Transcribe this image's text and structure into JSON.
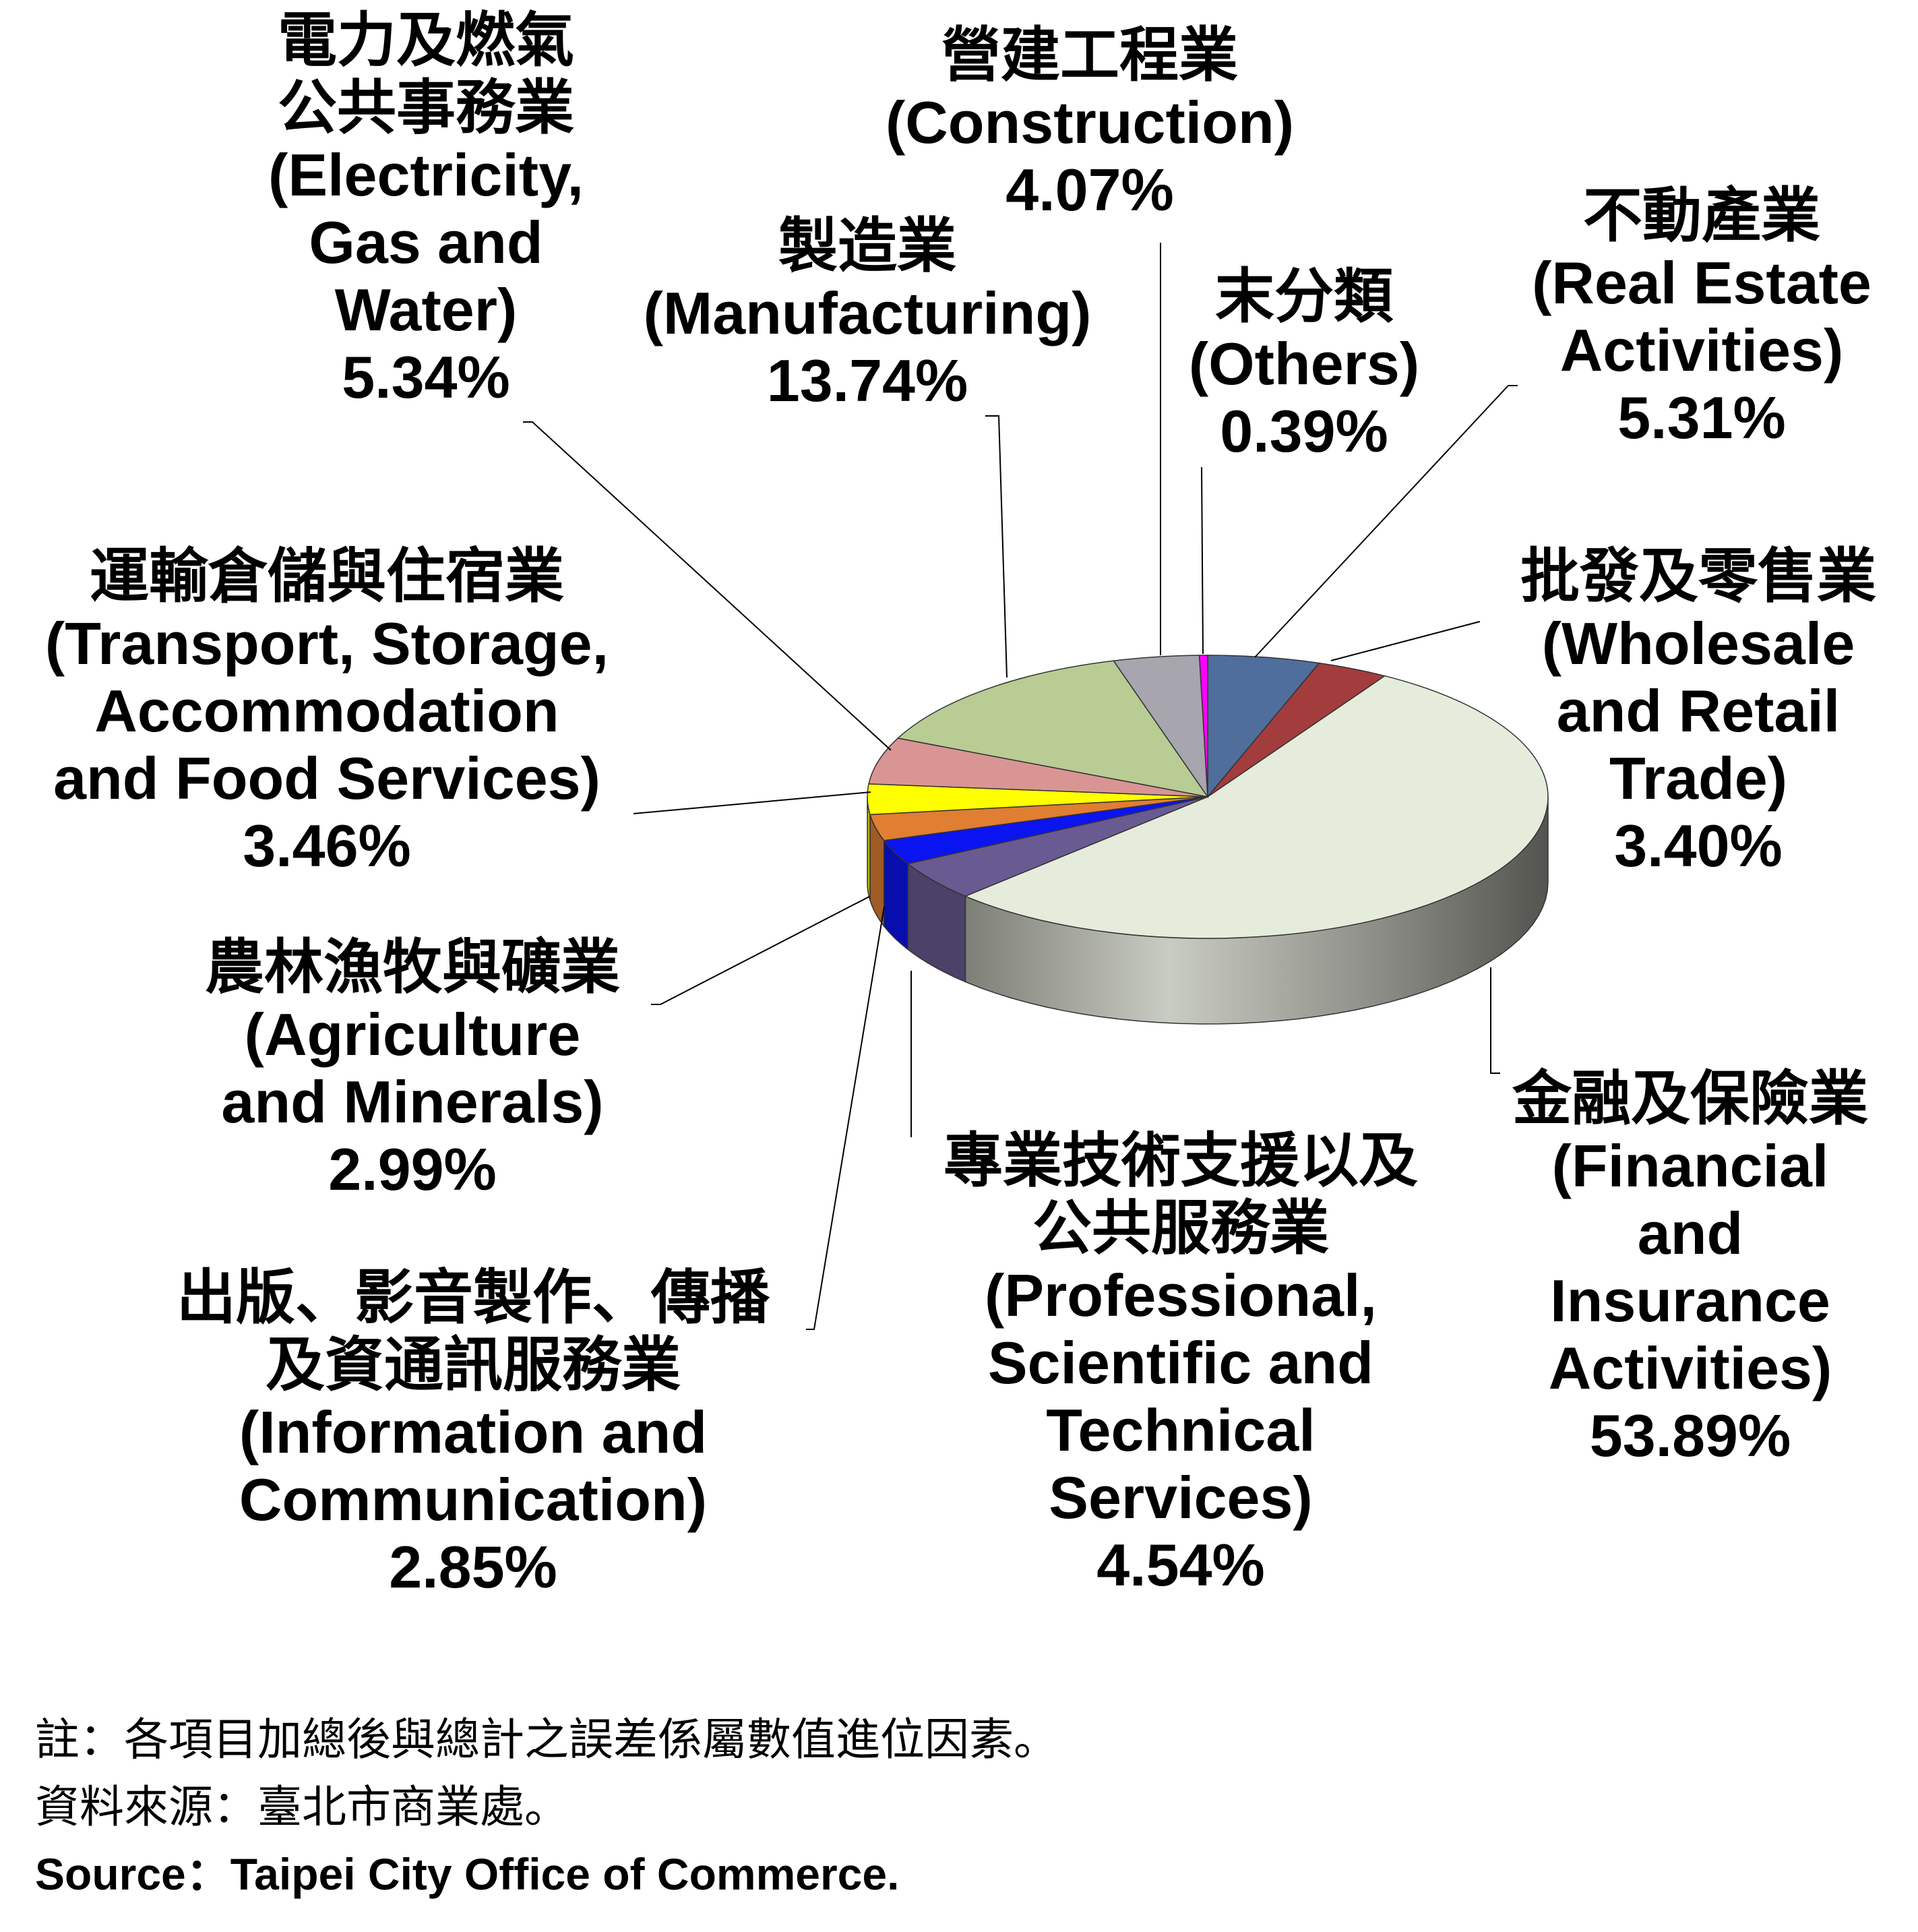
{
  "chart_data": {
    "type": "pie",
    "slices": [
      {
        "zh": "不動產業",
        "en": [
          "(Real Estate",
          "Activities)"
        ],
        "value": 5.31,
        "value_label": "5.31%",
        "color": "#4F6E9C"
      },
      {
        "zh": "批發及零售業",
        "en": [
          "(Wholesale",
          "and Retail",
          "Trade)"
        ],
        "value": 3.4,
        "value_label": "3.40%",
        "color": "#A33C3C"
      },
      {
        "zh": "金融及保險業",
        "en": [
          "(Financial",
          "and",
          "Insurance",
          "Activities)"
        ],
        "value": 53.89,
        "value_label": "53.89%",
        "color": "#E6ECDC"
      },
      {
        "zh": "專業技術支援以及公共服務業",
        "en": [
          "(Professional,",
          "Scientific and",
          "Technical",
          "Services)"
        ],
        "value": 4.54,
        "value_label": "4.54%",
        "color": "#6A5A92"
      },
      {
        "zh": "出版、影音製作、傳播及資通訊服務業",
        "en": [
          "(Information and",
          "Communication)"
        ],
        "value": 2.85,
        "value_label": "2.85%",
        "color": "#0A14F0"
      },
      {
        "zh": "農林漁牧與礦業",
        "en": [
          "(Agriculture",
          "and Minerals)"
        ],
        "value": 2.99,
        "value_label": "2.99%",
        "color": "#E07E32"
      },
      {
        "zh": "運輸倉儲與住宿業",
        "en": [
          "(Transport, Storage,",
          "Accommodation",
          "and Food Services)"
        ],
        "value": 3.46,
        "value_label": "3.46%",
        "color": "#FFFF00"
      },
      {
        "zh": "電力及燃氣公共事務業",
        "en": [
          "(Electricity,",
          "Gas and",
          "Water)"
        ],
        "value": 5.34,
        "value_label": "5.34%",
        "color": "#D99594"
      },
      {
        "zh": "製造業",
        "en": [
          "(Manufacturing)"
        ],
        "value": 13.74,
        "value_label": "13.74%",
        "color": "#B8CC94"
      },
      {
        "zh": "營建工程業",
        "en": [
          "(Construction)"
        ],
        "value": 4.07,
        "value_label": "4.07%",
        "color": "#A7A5AD"
      },
      {
        "zh": "末分類",
        "en": [
          "(Others)"
        ],
        "value": 0.39,
        "value_label": "0.39%",
        "color": "#FF00FF"
      }
    ]
  },
  "labels": {
    "real_estate": {
      "zh": [
        "不動產業"
      ],
      "en": [
        "(Real Estate",
        "Activities)"
      ],
      "pct": "5.31%"
    },
    "wholesale": {
      "zh": [
        "批發及零售業"
      ],
      "en": [
        "(Wholesale",
        "and Retail",
        "Trade)"
      ],
      "pct": "3.40%"
    },
    "financial": {
      "zh": [
        "金融及保險業"
      ],
      "en": [
        "(Financial",
        "and",
        "Insurance",
        "Activities)"
      ],
      "pct": "53.89%"
    },
    "professional": {
      "zh": [
        "專業技術支援以及",
        "公共服務業"
      ],
      "en": [
        "(Professional,",
        "Scientific and",
        "Technical",
        "Services)"
      ],
      "pct": "4.54%"
    },
    "information": {
      "zh": [
        "出版、影音製作、傳播",
        "及資通訊服務業"
      ],
      "en": [
        "(Information and",
        "Communication)"
      ],
      "pct": "2.85%"
    },
    "agriculture": {
      "zh": [
        "農林漁牧與礦業"
      ],
      "en": [
        "(Agriculture",
        "and Minerals)"
      ],
      "pct": "2.99%"
    },
    "transport": {
      "zh": [
        "運輸倉儲與住宿業"
      ],
      "en": [
        "(Transport, Storage,",
        "Accommodation",
        "and Food Services)"
      ],
      "pct": "3.46%"
    },
    "electricity": {
      "zh": [
        "電力及燃氣",
        "公共事務業"
      ],
      "en": [
        "(Electricity,",
        "Gas and",
        "Water)"
      ],
      "pct": "5.34%"
    },
    "manufacturing": {
      "zh": [
        "製造業"
      ],
      "en": [
        "(Manufacturing)"
      ],
      "pct": "13.74%"
    },
    "construction": {
      "zh": [
        "營建工程業"
      ],
      "en": [
        "(Construction)"
      ],
      "pct": "4.07%"
    },
    "others": {
      "zh": [
        "末分類"
      ],
      "en": [
        "(Others)"
      ],
      "pct": "0.39%"
    }
  },
  "footer": {
    "note": "註：各項目加總後與總計之誤差係屬數值進位因素。",
    "source_zh": "資料來源：臺北市商業處。",
    "source_en": "Source：Taipei City Office of Commerce."
  }
}
